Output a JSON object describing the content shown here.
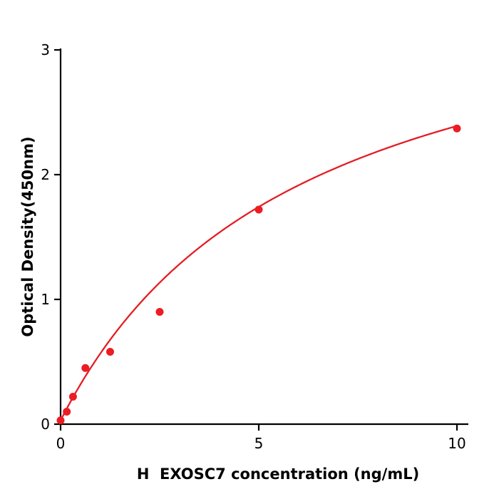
{
  "page": {
    "background": "#ffffff"
  },
  "chart_data": {
    "type": "scatter",
    "subtype": "standard_curve_with_fit",
    "title": "",
    "xlabel": "H  EXOSC7 concentration (ng/mL)",
    "ylabel": "Optical Density(450nm)",
    "x": [
      0,
      0.156,
      0.313,
      0.625,
      1.25,
      2.5,
      5,
      10
    ],
    "y": [
      0.03,
      0.1,
      0.22,
      0.45,
      0.58,
      0.9,
      1.72,
      2.37
    ],
    "xlim": [
      0,
      10
    ],
    "ylim": [
      0,
      3
    ],
    "xticks": [
      0,
      5,
      10
    ],
    "yticks": [
      0,
      1,
      2,
      3
    ],
    "grid": false,
    "legend": null,
    "point_color": "#ed1c24",
    "line_color": "#e31e24",
    "axis_color": "#000000",
    "fit": {
      "type": "michaelis_menten_with_offset",
      "vmax": 3.8,
      "km": 6.1,
      "c": 0.03
    }
  }
}
